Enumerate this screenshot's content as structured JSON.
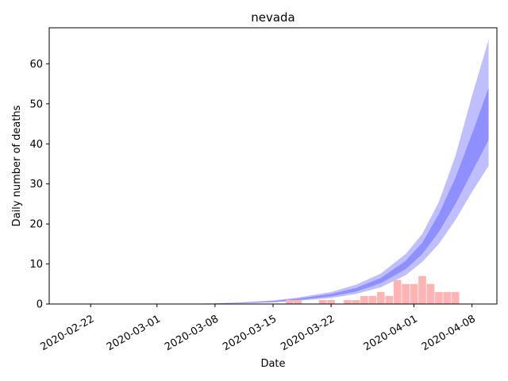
{
  "chart_data": {
    "type": "bar",
    "title": "nevada",
    "xlabel": "Date",
    "ylabel": "Daily number of deaths",
    "x_axis": {
      "type": "date",
      "range": [
        "2020-02-17",
        "2020-04-11"
      ],
      "ticks": [
        "2020-02-22",
        "2020-03-01",
        "2020-03-08",
        "2020-03-15",
        "2020-03-22",
        "2020-04-01",
        "2020-04-08"
      ]
    },
    "y_axis": {
      "range": [
        0,
        69
      ],
      "ticks": [
        0,
        10,
        20,
        30,
        40,
        50,
        60
      ]
    },
    "grid": false,
    "colors": {
      "bars": "#ffb3b3",
      "band": "#0000ff"
    },
    "series": [
      {
        "type": "bar",
        "points": [
          {
            "x": "2020-03-17",
            "y": 1
          },
          {
            "x": "2020-03-18",
            "y": 1
          },
          {
            "x": "2020-03-21",
            "y": 1
          },
          {
            "x": "2020-03-22",
            "y": 1
          },
          {
            "x": "2020-03-24",
            "y": 1
          },
          {
            "x": "2020-03-25",
            "y": 1
          },
          {
            "x": "2020-03-26",
            "y": 2
          },
          {
            "x": "2020-03-27",
            "y": 2
          },
          {
            "x": "2020-03-28",
            "y": 3
          },
          {
            "x": "2020-03-29",
            "y": 2
          },
          {
            "x": "2020-03-30",
            "y": 6
          },
          {
            "x": "2020-03-31",
            "y": 5
          },
          {
            "x": "2020-04-01",
            "y": 5
          },
          {
            "x": "2020-04-02",
            "y": 7
          },
          {
            "x": "2020-04-03",
            "y": 5
          },
          {
            "x": "2020-04-04",
            "y": 3
          },
          {
            "x": "2020-04-05",
            "y": 3
          },
          {
            "x": "2020-04-06",
            "y": 3
          }
        ]
      },
      {
        "type": "area",
        "band": "outer",
        "points": [
          {
            "x": "2020-03-01",
            "lo": 0.0,
            "hi": 0.0
          },
          {
            "x": "2020-03-05",
            "lo": 0.02,
            "hi": 0.06
          },
          {
            "x": "2020-03-08",
            "lo": 0.05,
            "hi": 0.15
          },
          {
            "x": "2020-03-11",
            "lo": 0.15,
            "hi": 0.4
          },
          {
            "x": "2020-03-15",
            "lo": 0.4,
            "hi": 0.9
          },
          {
            "x": "2020-03-18",
            "lo": 0.8,
            "hi": 1.6
          },
          {
            "x": "2020-03-22",
            "lo": 1.5,
            "hi": 3.0
          },
          {
            "x": "2020-03-25",
            "lo": 2.5,
            "hi": 4.8
          },
          {
            "x": "2020-03-28",
            "lo": 4.2,
            "hi": 7.6
          },
          {
            "x": "2020-03-31",
            "lo": 7.2,
            "hi": 12.5
          },
          {
            "x": "2020-04-02",
            "lo": 10.5,
            "hi": 17.5
          },
          {
            "x": "2020-04-04",
            "lo": 15.0,
            "hi": 25.5
          },
          {
            "x": "2020-04-06",
            "lo": 21.0,
            "hi": 37.0
          },
          {
            "x": "2020-04-08",
            "lo": 28.0,
            "hi": 52.0
          },
          {
            "x": "2020-04-10",
            "lo": 34.5,
            "hi": 66.0
          }
        ]
      },
      {
        "type": "area",
        "band": "inner",
        "points": [
          {
            "x": "2020-03-01",
            "lo": 0.0,
            "hi": 0.0
          },
          {
            "x": "2020-03-05",
            "lo": 0.03,
            "hi": 0.05
          },
          {
            "x": "2020-03-08",
            "lo": 0.07,
            "hi": 0.12
          },
          {
            "x": "2020-03-11",
            "lo": 0.2,
            "hi": 0.3
          },
          {
            "x": "2020-03-15",
            "lo": 0.5,
            "hi": 0.75
          },
          {
            "x": "2020-03-18",
            "lo": 1.0,
            "hi": 1.35
          },
          {
            "x": "2020-03-22",
            "lo": 1.9,
            "hi": 2.5
          },
          {
            "x": "2020-03-25",
            "lo": 3.1,
            "hi": 4.0
          },
          {
            "x": "2020-03-28",
            "lo": 5.2,
            "hi": 6.5
          },
          {
            "x": "2020-03-31",
            "lo": 8.7,
            "hi": 10.8
          },
          {
            "x": "2020-04-02",
            "lo": 12.5,
            "hi": 15.3
          },
          {
            "x": "2020-04-04",
            "lo": 18.0,
            "hi": 22.5
          },
          {
            "x": "2020-04-06",
            "lo": 25.0,
            "hi": 31.5
          },
          {
            "x": "2020-04-08",
            "lo": 33.0,
            "hi": 42.5
          },
          {
            "x": "2020-04-10",
            "lo": 41.0,
            "hi": 54.0
          }
        ]
      }
    ]
  }
}
